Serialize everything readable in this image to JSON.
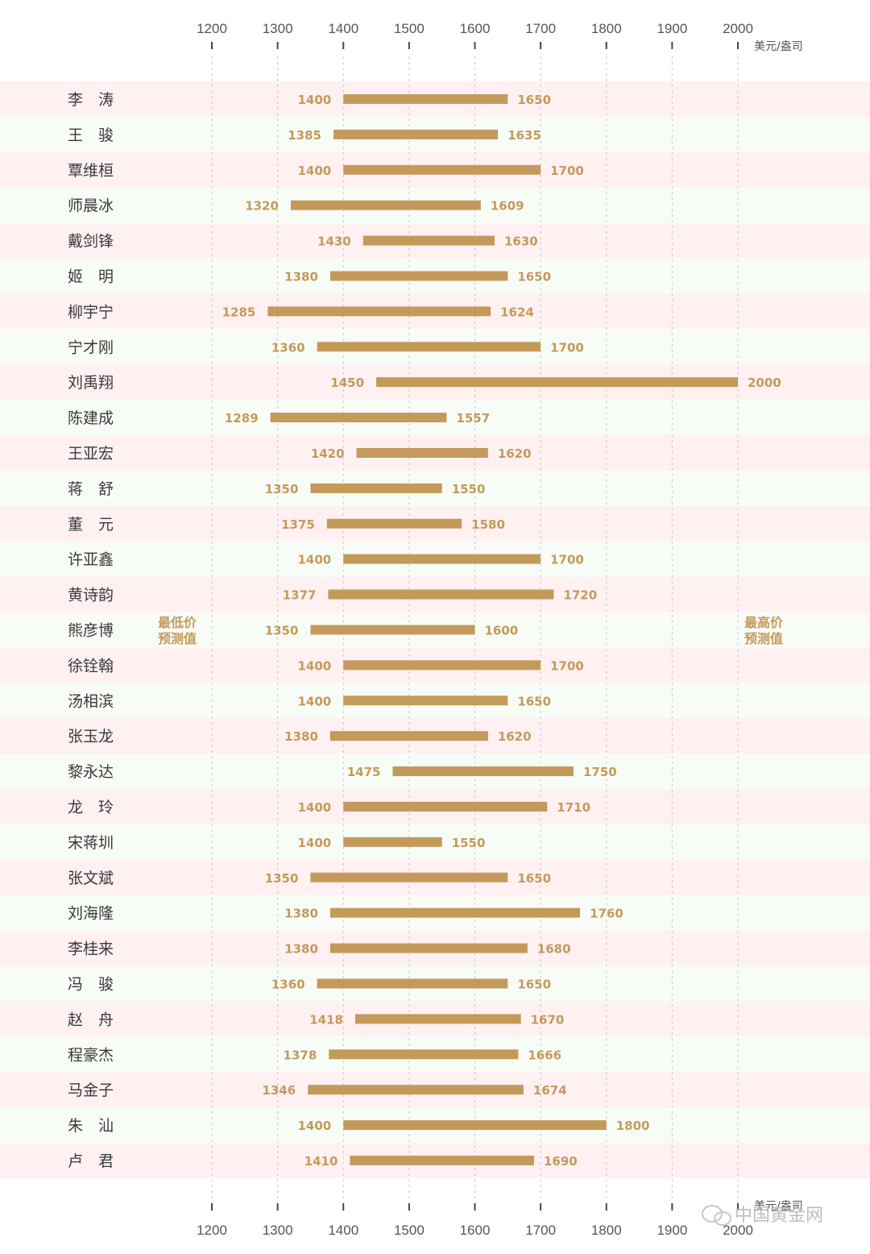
{
  "chart_data": {
    "type": "bar",
    "subtype": "floating-range",
    "orientation": "horizontal",
    "unit": "美元/盎司",
    "xlim": [
      1200,
      2000
    ],
    "ticks": [
      1200,
      1300,
      1400,
      1500,
      1600,
      1700,
      1800,
      1900,
      2000
    ],
    "grid": true,
    "low_label": [
      "最低价",
      "预测值"
    ],
    "high_label": [
      "最高价",
      "预测值"
    ],
    "categories": [
      "李　涛",
      "王　骏",
      "覃维桓",
      "师晨冰",
      "戴剑锋",
      "姬　明",
      "柳宇宁",
      "宁才刚",
      "刘禹翔",
      "陈建成",
      "王亚宏",
      "蒋　舒",
      "董　元",
      "许亚鑫",
      "黄诗韵",
      "熊彦博",
      "徐铨翰",
      "汤相滨",
      "张玉龙",
      "黎永达",
      "龙　玲",
      "宋蒋圳",
      "张文斌",
      "刘海隆",
      "李桂来",
      "冯　骏",
      "赵　舟",
      "程豪杰",
      "马金子",
      "朱　汕",
      "卢　君"
    ],
    "low": [
      1400,
      1385,
      1400,
      1320,
      1430,
      1380,
      1285,
      1360,
      1450,
      1289,
      1420,
      1350,
      1375,
      1400,
      1377,
      1350,
      1400,
      1400,
      1380,
      1475,
      1400,
      1400,
      1350,
      1380,
      1380,
      1360,
      1418,
      1378,
      1346,
      1400,
      1410
    ],
    "high": [
      1650,
      1635,
      1700,
      1609,
      1630,
      1650,
      1624,
      1700,
      2000,
      1557,
      1620,
      1550,
      1580,
      1700,
      1720,
      1600,
      1700,
      1650,
      1620,
      1750,
      1710,
      1550,
      1650,
      1760,
      1680,
      1650,
      1670,
      1666,
      1674,
      1800,
      1690
    ]
  },
  "colors": {
    "bar": "#c49a5a",
    "value_text": "#c49a5a",
    "stripe_pink": "#fff0f2",
    "stripe_green": "#f8fcf6",
    "grid": "#c8c8c8",
    "axis_text": "#555555"
  },
  "watermark": "中国黄金网"
}
